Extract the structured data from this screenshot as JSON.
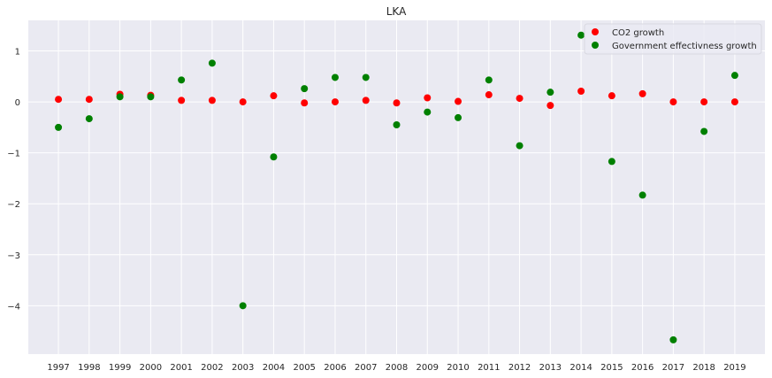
{
  "chart_data": {
    "type": "scatter",
    "title": "LKA",
    "xlabel": "",
    "ylabel": "",
    "x": [
      1997,
      1998,
      1999,
      2000,
      2001,
      2002,
      2003,
      2004,
      2005,
      2006,
      2007,
      2008,
      2009,
      2010,
      2011,
      2012,
      2013,
      2014,
      2015,
      2016,
      2017,
      2018,
      2019
    ],
    "x_tick_labels": [
      "1997",
      "1998",
      "1999",
      "2000",
      "2001",
      "2002",
      "2003",
      "2004",
      "2005",
      "2006",
      "2007",
      "2008",
      "2009",
      "2010",
      "2011",
      "2012",
      "2013",
      "2014",
      "2015",
      "2016",
      "2017",
      "2018",
      "2019"
    ],
    "ylim": [
      -4.95,
      1.6
    ],
    "y_ticks": [
      1,
      0,
      -1,
      -2,
      -3,
      -4
    ],
    "y_tick_labels": [
      "1",
      "0",
      "−1",
      "−2",
      "−3",
      "−4"
    ],
    "grid": true,
    "legend_position": "top-right",
    "series": [
      {
        "name": "CO2 growth",
        "color": "#ff0000",
        "values": [
          0.05,
          0.05,
          0.15,
          0.13,
          0.03,
          0.03,
          0.0,
          0.12,
          -0.02,
          0.0,
          0.03,
          -0.02,
          0.08,
          0.01,
          0.14,
          0.07,
          -0.07,
          0.21,
          0.12,
          0.16,
          0.0,
          0.0,
          0.0
        ]
      },
      {
        "name": "Government effectivness growth",
        "color": "#008000",
        "values": [
          -0.5,
          -0.33,
          0.1,
          0.1,
          0.43,
          0.76,
          -4.0,
          -1.08,
          0.26,
          0.48,
          0.48,
          -0.45,
          -0.2,
          -0.31,
          0.43,
          -0.86,
          0.19,
          1.31,
          -1.17,
          -1.83,
          -4.67,
          -0.58,
          0.52
        ]
      }
    ]
  }
}
